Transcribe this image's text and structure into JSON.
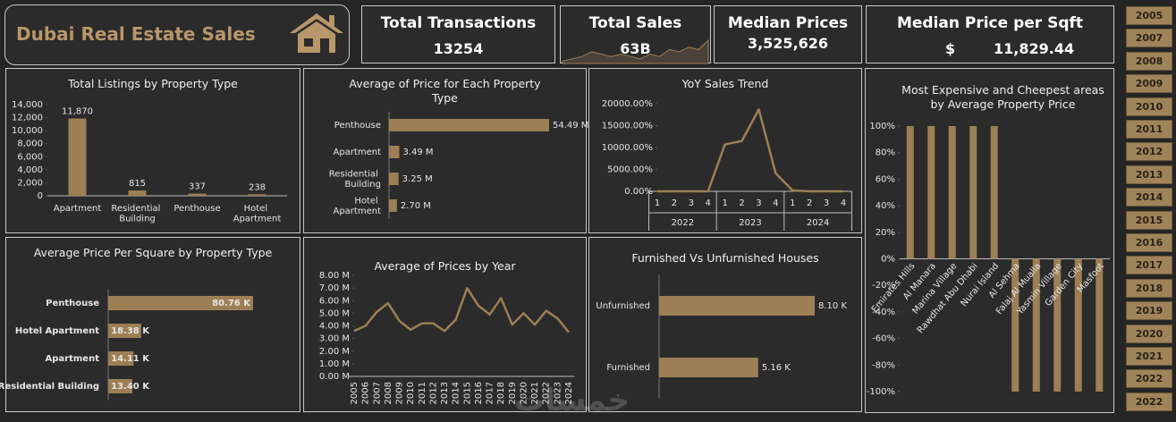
{
  "header": {
    "title": "Dubai Real Estate Sales"
  },
  "kpis": [
    {
      "label": "Total Transactions",
      "value": "13254"
    },
    {
      "label": "Total Sales",
      "value": "63B",
      "sparkline": [
        1,
        2,
        3,
        5,
        4,
        3,
        4,
        3,
        2,
        4,
        3,
        6,
        5,
        7,
        6,
        10
      ]
    },
    {
      "label": "Median Prices",
      "value": "3,525,626"
    },
    {
      "label": "Median Price per Sqft",
      "currency": "$",
      "value": "11,829.44"
    }
  ],
  "years": [
    "2005",
    "2007",
    "2008",
    "2009",
    "2010",
    "2011",
    "2012",
    "2013",
    "2014",
    "2015",
    "2016",
    "2017",
    "2018",
    "2019",
    "2020",
    "2021",
    "2022",
    "2022"
  ],
  "watermark": "خمسات",
  "chart_data": [
    {
      "type": "bar",
      "title": "Total Listings by Property Type",
      "categories": [
        "Apartment",
        "Residential Building",
        "Penthouse",
        "Hotel Apartment"
      ],
      "values": [
        11870,
        815,
        337,
        238
      ],
      "value_labels": [
        "11,870",
        "815",
        "337",
        "238"
      ],
      "color": "#9c7f54",
      "ylim": [
        0,
        14000
      ],
      "yticks": [
        0,
        {
          "value": 2000,
          "label": "2,000"
        },
        {
          "value": 4000,
          "label": "4,000"
        },
        {
          "value": 6000,
          "label": "6,000"
        },
        {
          "value": 8000,
          "label": "8,000"
        },
        {
          "value": 10000,
          "label": "10,000"
        },
        {
          "value": 12000,
          "label": "12,000"
        },
        {
          "value": 14000,
          "label": "14,000"
        }
      ]
    },
    {
      "type": "barh",
      "title": "Average of Price for Each Property Type",
      "categories": [
        "Penthouse",
        "Apartment",
        "Residential Building",
        "Hotel Apartment"
      ],
      "values": [
        54.49,
        3.49,
        3.25,
        2.7
      ],
      "value_labels": [
        "54.49 M",
        "3.49 M",
        "3.25 M",
        "2.70 M"
      ],
      "color": "#9c7f54"
    },
    {
      "type": "line",
      "title": "YoY Sales Trend",
      "categories": [
        "1",
        "2",
        "3",
        "4",
        "1",
        "2",
        "3",
        "4",
        "1",
        "2",
        "3",
        "4"
      ],
      "x_groups": [
        "2022",
        "2023",
        "2024"
      ],
      "values": [
        0,
        0,
        0,
        0,
        10700,
        11500,
        18700,
        4100,
        200,
        0,
        0,
        0
      ],
      "color": "#9c7f54",
      "ylim": [
        0,
        20000
      ],
      "yticks": [
        {
          "value": 0,
          "label": "0.00%"
        },
        {
          "value": 5000,
          "label": "5000.00%"
        },
        {
          "value": 10000,
          "label": "10000.00%"
        },
        {
          "value": 15000,
          "label": "15000.00%"
        },
        {
          "value": 20000,
          "label": "20000.00%"
        }
      ]
    },
    {
      "type": "bar",
      "title": "Most Expensive and Cheepest areas by Average Property Price",
      "categories": [
        "Emirates Hills",
        "Al Manara",
        "Marina Village",
        "Rawdhat Abu Dhabi",
        "Nurai Island",
        "Al Sehma",
        "Falaj Al Mualla",
        "Yasmin Village",
        "Garden City",
        "Masfoot"
      ],
      "values": [
        100,
        100,
        100,
        100,
        100,
        -100,
        -100,
        -100,
        -100,
        -100
      ],
      "color": "#9c7f54",
      "ylim": [
        -100,
        100
      ],
      "yticks": [
        {
          "value": -100,
          "label": "-100%"
        },
        {
          "value": -80,
          "label": "-80%"
        },
        {
          "value": -60,
          "label": "-60%"
        },
        {
          "value": -40,
          "label": "-40%"
        },
        {
          "value": -20,
          "label": "-20%"
        },
        {
          "value": 0,
          "label": "0%"
        },
        {
          "value": 20,
          "label": "20%"
        },
        {
          "value": 40,
          "label": "40%"
        },
        {
          "value": 60,
          "label": "60%"
        },
        {
          "value": 80,
          "label": "80%"
        },
        {
          "value": 100,
          "label": "100%"
        }
      ]
    },
    {
      "type": "barh",
      "title": "Average Price Per Square by Property Type",
      "categories": [
        "Penthouse",
        "Hotel Apartment",
        "Apartment",
        "Residential Building"
      ],
      "values": [
        80.76,
        18.38,
        14.11,
        13.4
      ],
      "value_labels": [
        "80.76 K",
        "18.38 K",
        "14.11 K",
        "13.40 K"
      ],
      "color": "#9c7f54"
    },
    {
      "type": "line",
      "title": "Average of Prices by Year",
      "categories": [
        "2005",
        "2006",
        "2007",
        "2008",
        "2009",
        "2010",
        "2011",
        "2012",
        "2013",
        "2014",
        "2015",
        "2016",
        "2017",
        "2018",
        "2019",
        "2020",
        "2021",
        "2022",
        "2023",
        "2024"
      ],
      "values": [
        3.6,
        4.0,
        5.1,
        5.8,
        4.4,
        3.7,
        4.2,
        4.2,
        3.6,
        4.5,
        7.0,
        5.6,
        4.9,
        6.2,
        4.1,
        5.0,
        4.1,
        5.2,
        4.6,
        3.5
      ],
      "color": "#9c7f54",
      "ylim": [
        0,
        8
      ],
      "yticks": [
        {
          "value": 0,
          "label": "0.00 M"
        },
        {
          "value": 1,
          "label": "1.00 M"
        },
        {
          "value": 2,
          "label": "2.00 M"
        },
        {
          "value": 3,
          "label": "3.00 M"
        },
        {
          "value": 4,
          "label": "4.00 M"
        },
        {
          "value": 5,
          "label": "5.00 M"
        },
        {
          "value": 6,
          "label": "6.00 M"
        },
        {
          "value": 7,
          "label": "7.00 M"
        },
        {
          "value": 8,
          "label": "8.00 M"
        }
      ]
    },
    {
      "type": "barh",
      "title": "Furnished Vs Unfurnished Houses",
      "categories": [
        "Unfurnished",
        "Furnished"
      ],
      "values": [
        8.1,
        5.16
      ],
      "value_labels": [
        "8.10 K",
        "5.16 K"
      ],
      "color": "#9c7f54"
    }
  ]
}
